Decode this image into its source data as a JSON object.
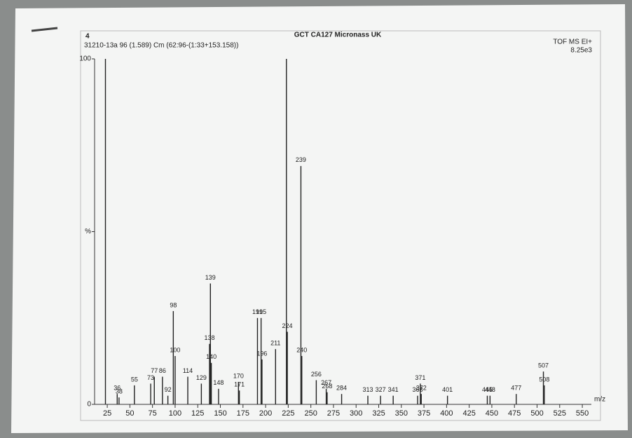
{
  "chart_data": {
    "type": "bar",
    "title": "GCT CA127 Micronass UK",
    "subtitle": "31210-13a 96 (1.589) Cm (62:96-(1:33+153.158))",
    "panel_number": "4",
    "instrument": "TOF MS EI+",
    "intensity": "8.25e3",
    "x_label": "m/z",
    "color": "#222222",
    "x": [
      23,
      36,
      38,
      55,
      73,
      77,
      86,
      92,
      98,
      100,
      114,
      129,
      138,
      139,
      140,
      148,
      170,
      171,
      191,
      195,
      196,
      211,
      223,
      224,
      239,
      240,
      256,
      267,
      268,
      284,
      313,
      327,
      341,
      368,
      371,
      372,
      401,
      445,
      448,
      477,
      507,
      508
    ],
    "values": [
      100,
      3,
      2,
      5.5,
      6,
      8,
      8,
      2.5,
      27,
      14,
      8,
      6,
      17.5,
      35,
      12,
      4.5,
      6.5,
      4,
      25,
      25,
      13,
      16,
      100,
      21,
      69,
      14,
      7,
      4.5,
      3.5,
      3,
      2.5,
      2.5,
      2.5,
      2.5,
      6,
      3,
      2.5,
      2.5,
      2.5,
      3,
      9.5,
      5.5
    ],
    "xlim": [
      11,
      560
    ],
    "xticks": [
      25,
      50,
      75,
      100,
      125,
      150,
      175,
      200,
      225,
      250,
      275,
      300,
      325,
      350,
      375,
      400,
      425,
      450,
      475,
      500,
      525,
      550
    ],
    "ylim": [
      0,
      100
    ],
    "yticks": [
      0,
      {
        "value": 50,
        "label": "%"
      },
      100
    ]
  }
}
